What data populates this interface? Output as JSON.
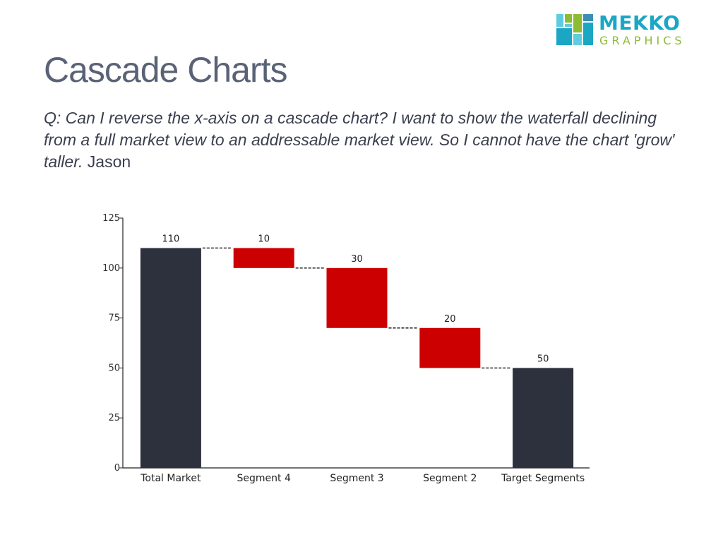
{
  "header": {
    "title": "Cascade Charts",
    "question": "Q: Can I reverse the x-axis on a cascade chart? I want to show the waterfall declining from a full market view to an addressable market view. So I cannot have the chart 'grow' taller.",
    "author": "Jason"
  },
  "logo": {
    "word1": "MEKKO",
    "word2": "GRAPHICS",
    "colors": [
      "#1ba7c4",
      "#8dbb31",
      "#5fcde0",
      "#3b8fb4"
    ]
  },
  "chart_data": {
    "type": "bar",
    "subtype": "waterfall",
    "categories": [
      "Total Market",
      "Segment 4",
      "Segment 3",
      "Segment 2",
      "Target Segments"
    ],
    "bars": [
      {
        "category": "Total Market",
        "start": 0,
        "end": 110,
        "label": "110",
        "kind": "total"
      },
      {
        "category": "Segment 4",
        "start": 110,
        "end": 100,
        "label": "10",
        "kind": "decrease"
      },
      {
        "category": "Segment 3",
        "start": 100,
        "end": 70,
        "label": "30",
        "kind": "decrease"
      },
      {
        "category": "Segment 2",
        "start": 70,
        "end": 50,
        "label": "20",
        "kind": "decrease"
      },
      {
        "category": "Target Segments",
        "start": 0,
        "end": 50,
        "label": "50",
        "kind": "total"
      }
    ],
    "ylim": [
      0,
      125
    ],
    "yticks": [
      0,
      25,
      50,
      75,
      100,
      125
    ],
    "colors": {
      "total": "#2d303d",
      "decrease": "#cc0000"
    },
    "connectors": true,
    "grid": false
  }
}
